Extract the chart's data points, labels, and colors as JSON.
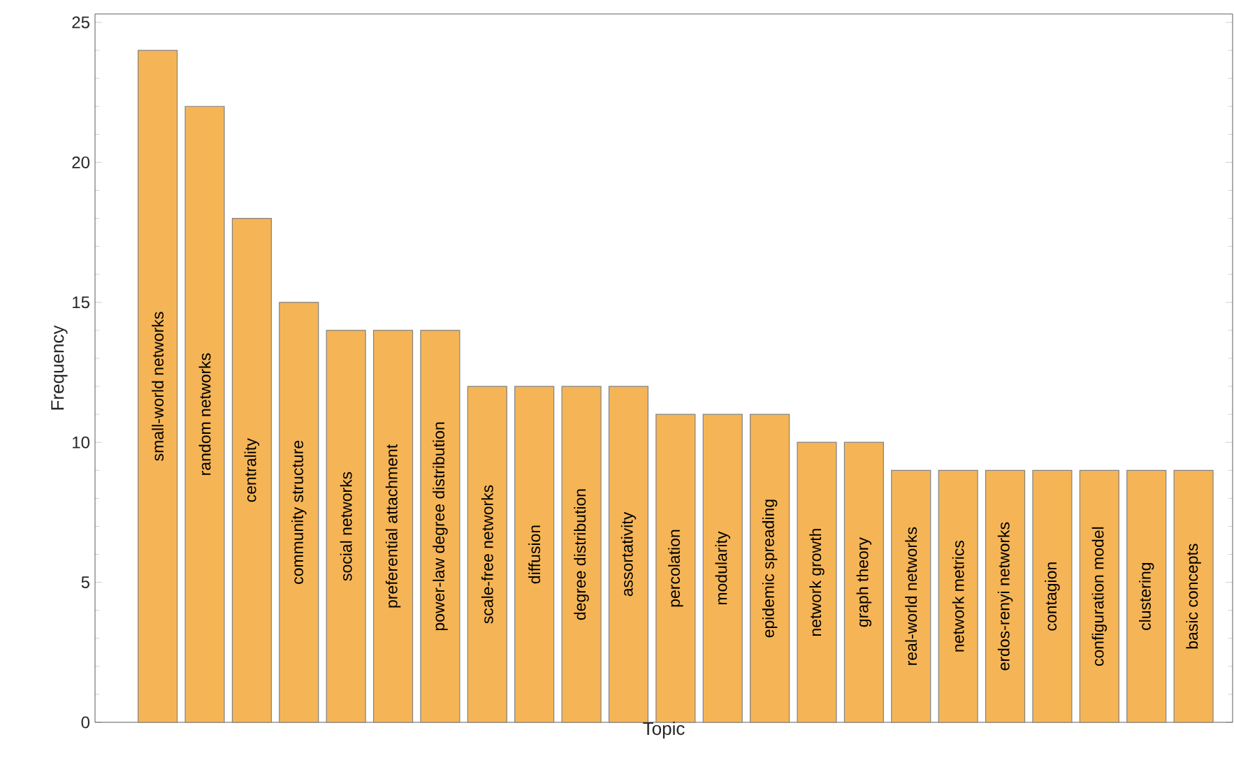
{
  "chart_data": {
    "type": "bar",
    "xlabel": "Topic",
    "ylabel": "Frequency",
    "color": "#f5b556",
    "categories": [
      "small-world networks",
      "random networks",
      "centrality",
      "community structure",
      "social networks",
      "preferential attachment",
      "power-law degree distribution",
      "scale-free networks",
      "diffusion",
      "degree distribution",
      "assortativity",
      "percolation",
      "modularity",
      "epidemic spreading",
      "network growth",
      "graph theory",
      "real-world networks",
      "network metrics",
      "erdos-renyi networks",
      "contagion",
      "configuration model",
      "clustering",
      "basic concepts"
    ],
    "values": [
      24,
      22,
      18,
      15,
      14,
      14,
      14,
      12,
      12,
      12,
      12,
      11,
      11,
      11,
      10,
      10,
      9,
      9,
      9,
      9,
      9,
      9,
      9
    ],
    "ylim": [
      0,
      25.3
    ],
    "yticks": [
      0,
      5,
      10,
      15,
      20,
      25
    ],
    "grid": false,
    "legend": false
  }
}
